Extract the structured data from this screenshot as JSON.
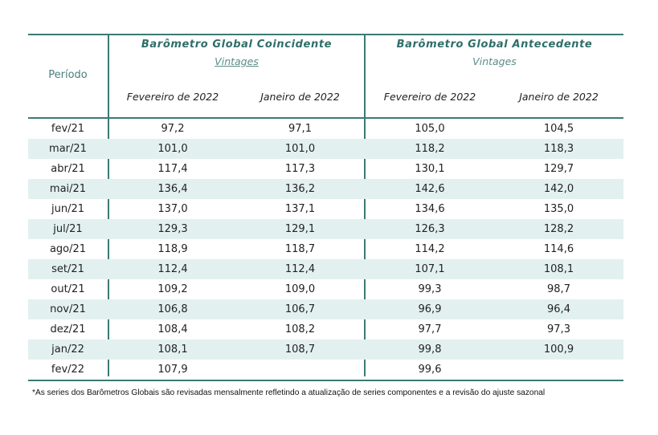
{
  "header": {
    "periodo_label": "Período",
    "group1": {
      "title": "Barômetro Global Coincidente",
      "subtitle": "Vintages"
    },
    "group2": {
      "title": "Barômetro Global Antecedente",
      "subtitle": "Vintages"
    },
    "columns": [
      "Fevereiro de 2022",
      "Janeiro de 2022",
      "Fevereiro de 2022",
      "Janeiro de 2022"
    ]
  },
  "rows": [
    {
      "periodo": "fev/21",
      "c1": "97,2",
      "c2": "97,1",
      "c3": "105,0",
      "c4": "104,5"
    },
    {
      "periodo": "mar/21",
      "c1": "101,0",
      "c2": "101,0",
      "c3": "118,2",
      "c4": "118,3"
    },
    {
      "periodo": "abr/21",
      "c1": "117,4",
      "c2": "117,3",
      "c3": "130,1",
      "c4": "129,7"
    },
    {
      "periodo": "mai/21",
      "c1": "136,4",
      "c2": "136,2",
      "c3": "142,6",
      "c4": "142,0"
    },
    {
      "periodo": "jun/21",
      "c1": "137,0",
      "c2": "137,1",
      "c3": "134,6",
      "c4": "135,0"
    },
    {
      "periodo": "jul/21",
      "c1": "129,3",
      "c2": "129,1",
      "c3": "126,3",
      "c4": "128,2"
    },
    {
      "periodo": "ago/21",
      "c1": "118,9",
      "c2": "118,7",
      "c3": "114,2",
      "c4": "114,6"
    },
    {
      "periodo": "set/21",
      "c1": "112,4",
      "c2": "112,4",
      "c3": "107,1",
      "c4": "108,1"
    },
    {
      "periodo": "out/21",
      "c1": "109,2",
      "c2": "109,0",
      "c3": "99,3",
      "c4": "98,7"
    },
    {
      "periodo": "nov/21",
      "c1": "106,8",
      "c2": "106,7",
      "c3": "96,9",
      "c4": "96,4"
    },
    {
      "periodo": "dez/21",
      "c1": "108,4",
      "c2": "108,2",
      "c3": "97,7",
      "c4": "97,3"
    },
    {
      "periodo": "jan/22",
      "c1": "108,1",
      "c2": "108,7",
      "c3": "99,8",
      "c4": "100,9"
    },
    {
      "periodo": "fev/22",
      "c1": "107,9",
      "c2": "",
      "c3": "99,6",
      "c4": ""
    }
  ],
  "footnote": "*As series dos Barômetros Globais são revisadas mensalmente refletindo a atualização de series componentes e a revisão do ajuste sazonal",
  "colors": {
    "accent": "#3c7a76",
    "row_shade": "#e3f0f0",
    "title_text": "#2f6e69"
  }
}
